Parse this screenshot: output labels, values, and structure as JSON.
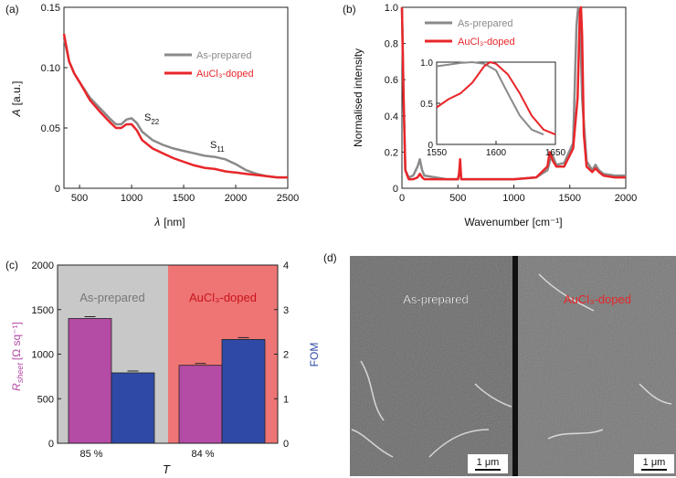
{
  "panels": {
    "a": {
      "label": "(a)",
      "ylabel_var": "A",
      "ylabel_unit": "[a.u.]",
      "xlabel_var": "λ",
      "xlabel_unit": "[nm]",
      "legend": [
        "As-prepared",
        "AuCl₃-doped"
      ],
      "annot_s22": "S",
      "annot_s22_sub": "22",
      "annot_s11": "S",
      "annot_s11_sub": "11",
      "xticks": [
        "500",
        "1000",
        "1500",
        "2000",
        "2500"
      ],
      "yticks": [
        "0",
        "0.05",
        "0.10",
        "0.15"
      ]
    },
    "b": {
      "label": "(b)",
      "ylabel": "Normalised intensity",
      "xlabel": "Wavenumber [cm⁻¹]",
      "legend": [
        "As-prepared",
        "AuCl₃-doped"
      ],
      "xticks": [
        "0",
        "500",
        "1000",
        "1500",
        "2000"
      ],
      "yticks": [
        "0",
        "0.2",
        "0.4",
        "0.6",
        "0.8",
        "1.0"
      ],
      "inset_xticks": [
        "1550",
        "1600",
        "1650"
      ],
      "inset_yticks": [
        "0",
        "0.5",
        "1.0"
      ]
    },
    "c": {
      "label": "(c)",
      "ylabel_var": "R",
      "ylabel_sub": "sheet",
      "ylabel_unit": "[Ω sq⁻¹]",
      "y2label": "FOM",
      "xlabel": "T",
      "group_labels": [
        "As-prepared",
        "AuCl₃-doped"
      ],
      "group_ticks": [
        "85 %",
        "84 %"
      ],
      "yticks": [
        "0",
        "500",
        "1000",
        "1500",
        "2000"
      ],
      "y2ticks": [
        "0",
        "1",
        "2",
        "3",
        "4"
      ]
    },
    "d": {
      "label": "(d)",
      "left_label": "As-prepared",
      "right_label": "AuCl₃-doped",
      "scalebar": "1 μm"
    }
  },
  "colors": {
    "gray": "#8a8a8a",
    "red": "#e8262a",
    "magenta": "#b44ba5",
    "blue": "#2e4aa6",
    "bg_gray": "#c8c8c8",
    "bg_red": "#ef7575",
    "sem_left": "#6a6a6a",
    "sem_right": "#777777"
  },
  "chart_data": [
    {
      "type": "line",
      "panel": "a",
      "xlim": [
        350,
        2500
      ],
      "ylim": [
        0,
        0.15
      ],
      "series": [
        {
          "name": "As-prepared",
          "x": [
            350,
            400,
            450,
            500,
            600,
            700,
            800,
            850,
            900,
            950,
            1000,
            1050,
            1100,
            1200,
            1300,
            1400,
            1500,
            1600,
            1700,
            1800,
            1900,
            2000,
            2100,
            2200,
            2300,
            2400,
            2500
          ],
          "y": [
            0.125,
            0.105,
            0.095,
            0.088,
            0.075,
            0.066,
            0.057,
            0.053,
            0.053,
            0.057,
            0.058,
            0.054,
            0.047,
            0.04,
            0.036,
            0.033,
            0.031,
            0.029,
            0.027,
            0.026,
            0.024,
            0.02,
            0.015,
            0.012,
            0.01,
            0.009,
            0.009
          ]
        },
        {
          "name": "AuCl₃-doped",
          "x": [
            350,
            400,
            450,
            500,
            600,
            700,
            800,
            850,
            900,
            950,
            1000,
            1050,
            1100,
            1200,
            1300,
            1400,
            1500,
            1600,
            1700,
            1800,
            1900,
            2000,
            2100,
            2200,
            2300,
            2400,
            2500
          ],
          "y": [
            0.128,
            0.105,
            0.095,
            0.088,
            0.073,
            0.063,
            0.054,
            0.05,
            0.05,
            0.053,
            0.053,
            0.048,
            0.04,
            0.033,
            0.029,
            0.025,
            0.022,
            0.019,
            0.017,
            0.016,
            0.014,
            0.013,
            0.012,
            0.011,
            0.01,
            0.009,
            0.009
          ]
        }
      ]
    },
    {
      "type": "line",
      "panel": "b",
      "xlim": [
        0,
        2000
      ],
      "ylim": [
        0,
        1.0
      ],
      "series": [
        {
          "name": "As-prepared",
          "x": [
            0,
            15,
            30,
            60,
            100,
            140,
            160,
            180,
            200,
            300,
            400,
            500,
            510,
            520,
            530,
            600,
            800,
            1000,
            1200,
            1300,
            1340,
            1380,
            1450,
            1530,
            1560,
            1575,
            1590,
            1610,
            1650,
            1700,
            1730,
            1760,
            1800,
            1900,
            2000
          ],
          "y": [
            1.0,
            0.5,
            0.1,
            0.06,
            0.07,
            0.12,
            0.16,
            0.1,
            0.07,
            0.06,
            0.05,
            0.05,
            0.08,
            0.1,
            0.05,
            0.05,
            0.05,
            0.05,
            0.06,
            0.1,
            0.19,
            0.13,
            0.14,
            0.25,
            0.9,
            1.0,
            0.98,
            0.5,
            0.15,
            0.1,
            0.13,
            0.1,
            0.08,
            0.07,
            0.07
          ]
        },
        {
          "name": "AuCl₃-doped",
          "x": [
            0,
            15,
            30,
            60,
            100,
            140,
            160,
            180,
            200,
            300,
            400,
            500,
            510,
            520,
            530,
            600,
            800,
            1000,
            1200,
            1300,
            1320,
            1350,
            1380,
            1450,
            1530,
            1570,
            1590,
            1600,
            1610,
            1625,
            1650,
            1700,
            1730,
            1760,
            1800,
            1900,
            2000
          ],
          "y": [
            1.0,
            0.5,
            0.1,
            0.05,
            0.05,
            0.06,
            0.08,
            0.06,
            0.05,
            0.05,
            0.05,
            0.05,
            0.08,
            0.16,
            0.05,
            0.05,
            0.05,
            0.05,
            0.06,
            0.12,
            0.2,
            0.15,
            0.12,
            0.12,
            0.22,
            0.5,
            0.98,
            1.0,
            0.85,
            0.3,
            0.12,
            0.09,
            0.11,
            0.09,
            0.07,
            0.06,
            0.06
          ]
        }
      ]
    },
    {
      "type": "line",
      "panel": "b-inset",
      "xlim": [
        1550,
        1650
      ],
      "ylim": [
        0,
        1.0
      ],
      "series": [
        {
          "name": "As-prepared",
          "x": [
            1550,
            1560,
            1570,
            1580,
            1590,
            1600,
            1610,
            1620,
            1630,
            1640
          ],
          "y": [
            0.95,
            0.97,
            0.99,
            1.0,
            0.98,
            0.9,
            0.62,
            0.35,
            0.18,
            0.12
          ]
        },
        {
          "name": "AuCl₃-doped",
          "x": [
            1550,
            1560,
            1570,
            1580,
            1590,
            1595,
            1600,
            1610,
            1620,
            1630,
            1640,
            1650
          ],
          "y": [
            0.45,
            0.55,
            0.62,
            0.75,
            0.95,
            1.0,
            0.98,
            0.85,
            0.62,
            0.35,
            0.18,
            0.12
          ]
        }
      ]
    },
    {
      "type": "bar",
      "panel": "c",
      "categories": [
        "85 %",
        "84 %"
      ],
      "ylim": [
        0,
        2000
      ],
      "y2lim": [
        0,
        4
      ],
      "series": [
        {
          "name": "R_sheet",
          "values": [
            1400,
            875
          ]
        },
        {
          "name": "FOM",
          "values": [
            1.58,
            2.33
          ]
        }
      ]
    }
  ]
}
